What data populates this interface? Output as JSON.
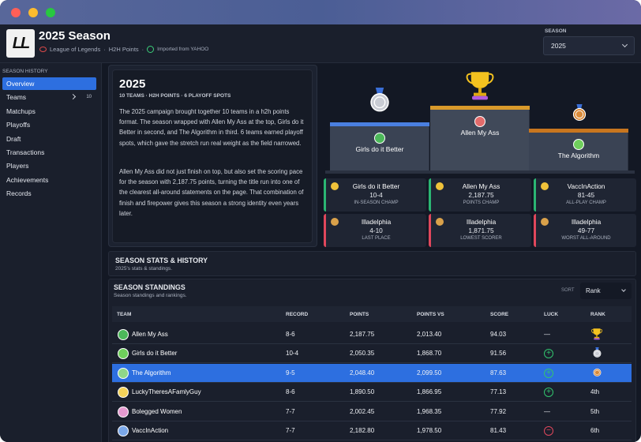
{
  "header": {
    "logo": "LL",
    "title": "2025 Season",
    "meta": [
      "League of Legends",
      "H2H Points",
      "Imported from YAHOO"
    ],
    "separator": "·"
  },
  "season_select": {
    "label": "SEASON",
    "value": "2025"
  },
  "sidebar": {
    "heading": "SEASON HISTORY",
    "items": [
      {
        "label": "Overview",
        "active": true
      },
      {
        "label": "Teams",
        "badge": "10"
      },
      {
        "label": "Matchups"
      },
      {
        "label": "Playoffs"
      },
      {
        "label": "Draft"
      },
      {
        "label": "Transactions"
      },
      {
        "label": "Players"
      },
      {
        "label": "Achievements"
      },
      {
        "label": "Records"
      }
    ]
  },
  "summary": {
    "title": "2025",
    "subtitle": "10 TEAMS · H2H POINTS · 6 PLAYOFF SPOTS",
    "paragraphs": [
      "The 2025 campaign brought together 10 teams in a h2h points format. The season wrapped with Allen My Ass at the top, Girls do it Better in second, and The Algorithm in third. 6 teams earned playoff spots, which gave the stretch run real weight as the field narrowed.",
      "Allen My Ass did not just finish on top, but also set the scoring pace for the season with 2,187.75 points, turning the title run into one of the clearest all-around statements on the page. That combination of finish and firepower gives this season a strong identity even years later."
    ]
  },
  "podium": {
    "first": "Allen My Ass",
    "second": "Girls do it Better",
    "third": "The Algorithm"
  },
  "awards": [
    {
      "team": "Girls do it Better",
      "value": "10-4",
      "label": "IN-SEASON CHAMP",
      "tone": "good"
    },
    {
      "team": "Allen My Ass",
      "value": "2,187.75",
      "label": "POINTS CHAMP",
      "tone": "good"
    },
    {
      "team": "VaccInAction",
      "value": "81-45",
      "label": "ALL-PLAY CHAMP",
      "tone": "good"
    },
    {
      "team": "Illadelphia",
      "value": "4-10",
      "label": "LAST PLACE",
      "tone": "bad"
    },
    {
      "team": "Illadelphia",
      "value": "1,871.75",
      "label": "LOWEST SCORER",
      "tone": "bad"
    },
    {
      "team": "Illadelphia",
      "value": "49-77",
      "label": "WORST ALL-AROUND",
      "tone": "bad"
    }
  ],
  "stats_section": {
    "title": "SEASON STATS & HISTORY",
    "subtitle": "2025's stats & standings."
  },
  "standings": {
    "title": "SEASON STANDINGS",
    "subtitle": "Season standings and rankings.",
    "sort_label": "SORT",
    "sort_value": "Rank",
    "columns": [
      "TEAM",
      "RECORD",
      "POINTS",
      "POINTS VS",
      "SCORE",
      "LUCK",
      "RANK"
    ],
    "rows": [
      {
        "team": "Allen My Ass",
        "record": "8-6",
        "points": "2,187.75",
        "points_vs": "2,013.40",
        "score": "94.03",
        "luck": "—",
        "luck_tone": "none",
        "medal": "gold"
      },
      {
        "team": "Girls do it Better",
        "record": "10-4",
        "points": "2,050.35",
        "points_vs": "1,868.70",
        "score": "91.56",
        "luck": "+",
        "luck_tone": "up",
        "medal": "silver"
      },
      {
        "team": "The Algorithm",
        "record": "9-5",
        "points": "2,048.40",
        "points_vs": "2,099.50",
        "score": "87.63",
        "luck": "+",
        "luck_tone": "up",
        "medal": "bronze",
        "highlighted": true
      },
      {
        "team": "LuckyTheresAFamlyGuy",
        "record": "8-6",
        "points": "1,890.50",
        "points_vs": "1,866.95",
        "score": "77.13",
        "luck": "+",
        "luck_tone": "up",
        "rank": "4th"
      },
      {
        "team": "Bolegged Women",
        "record": "7-7",
        "points": "2,002.45",
        "points_vs": "1,968.35",
        "score": "77.92",
        "luck": "—",
        "luck_tone": "none",
        "rank": "5th"
      },
      {
        "team": "VaccInAction",
        "record": "7-7",
        "points": "2,182.80",
        "points_vs": "1,978.50",
        "score": "81.43",
        "luck": "−",
        "luck_tone": "down",
        "rank": "6th"
      }
    ]
  }
}
